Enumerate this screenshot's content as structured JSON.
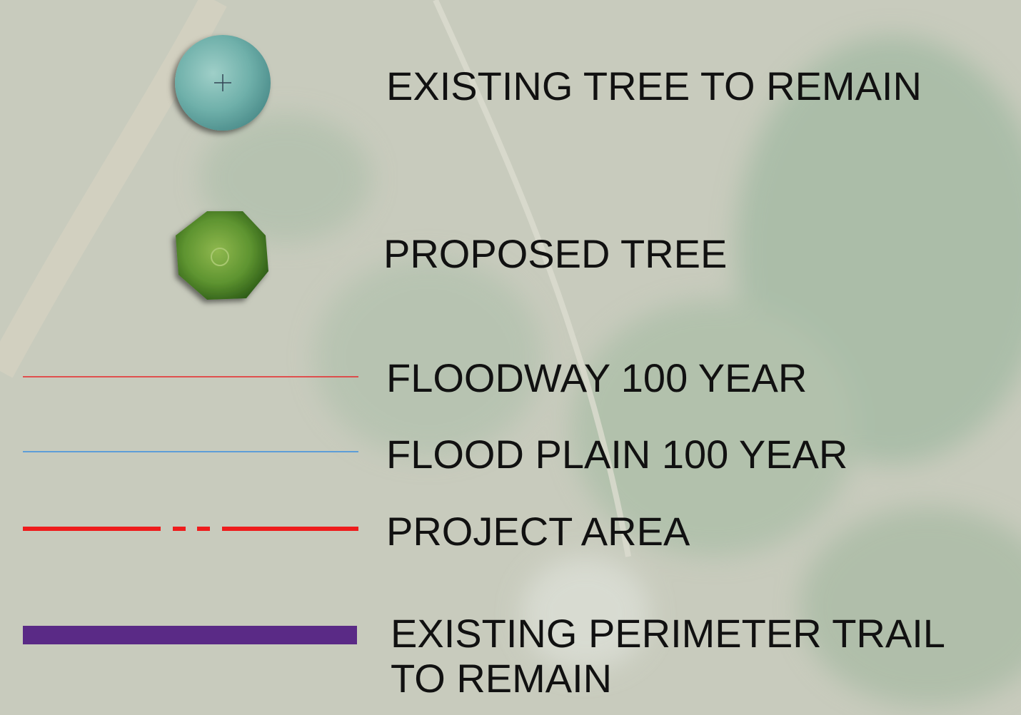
{
  "legend": {
    "items": [
      {
        "label": "EXISTING TREE TO REMAIN"
      },
      {
        "label": "PROPOSED TREE"
      },
      {
        "label": "FLOODWAY 100 YEAR"
      },
      {
        "label": "FLOOD PLAIN 100 YEAR"
      },
      {
        "label": "PROJECT AREA"
      },
      {
        "lines": [
          "EXISTING PERIMETER TRAIL",
          "TO REMAIN"
        ]
      }
    ]
  }
}
